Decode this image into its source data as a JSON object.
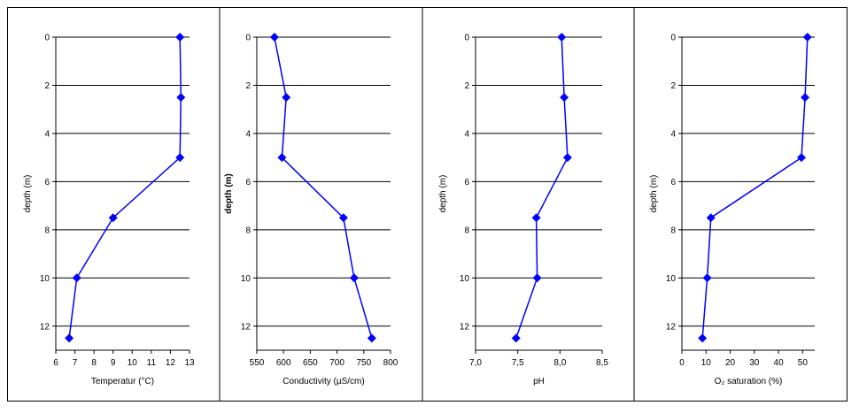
{
  "chart_data": [
    {
      "type": "line",
      "xlabel": "Temperatur (°C)",
      "ylabel": "depth (m)",
      "xlim": [
        6,
        13
      ],
      "xticks": [
        "6",
        "7",
        "8",
        "9",
        "10",
        "11",
        "12",
        "13"
      ],
      "ylim": [
        0,
        13
      ],
      "yticks": [
        "0",
        "2",
        "4",
        "6",
        "8",
        "10",
        "12"
      ],
      "y_inverted": true,
      "grid": "horizontal",
      "color": "#0000ff",
      "marker": "diamond",
      "series": [
        {
          "x": [
            12.5,
            12.55,
            12.5,
            9.0,
            7.1,
            6.7
          ],
          "y": [
            0,
            2.5,
            5,
            7.5,
            10,
            12.5
          ]
        }
      ]
    },
    {
      "type": "line",
      "xlabel": "Conductivity (µS/cm)",
      "ylabel": "depth (m)",
      "ylabel_bold": true,
      "xlim": [
        550,
        800
      ],
      "xticks": [
        "550",
        "600",
        "650",
        "700",
        "750",
        "800"
      ],
      "ylim": [
        0,
        13
      ],
      "yticks": [
        "0",
        "2",
        "4",
        "6",
        "8",
        "10",
        "12"
      ],
      "y_inverted": true,
      "grid": "horizontal",
      "color": "#0000ff",
      "marker": "diamond",
      "series": [
        {
          "x": [
            583,
            605,
            597,
            712,
            732,
            765
          ],
          "y": [
            0,
            2.5,
            5,
            7.5,
            10,
            12.5
          ]
        }
      ]
    },
    {
      "type": "line",
      "xlabel": "pH",
      "ylabel": "depth (m)",
      "xlim": [
        7.0,
        8.5
      ],
      "xticks": [
        "7,0",
        "7,5",
        "8,0",
        "8,5"
      ],
      "ylim": [
        0,
        13
      ],
      "yticks": [
        "0",
        "2",
        "4",
        "6",
        "8",
        "10",
        "12"
      ],
      "y_inverted": true,
      "grid": "horizontal",
      "color": "#0000ff",
      "marker": "diamond",
      "series": [
        {
          "x": [
            8.02,
            8.05,
            8.09,
            7.72,
            7.73,
            7.48
          ],
          "y": [
            0,
            2.5,
            5,
            7.5,
            10,
            12.5
          ]
        }
      ]
    },
    {
      "type": "line",
      "xlabel": "O₂ saturation (%)",
      "ylabel": "depth (m)",
      "xlim": [
        0,
        55
      ],
      "xticks": [
        "0",
        "10",
        "20",
        "30",
        "40",
        "50"
      ],
      "ylim": [
        0,
        13
      ],
      "yticks": [
        "0",
        "2",
        "4",
        "6",
        "8",
        "10",
        "12"
      ],
      "y_inverted": true,
      "grid": "horizontal",
      "color": "#0000ff",
      "marker": "diamond",
      "series": [
        {
          "x": [
            52,
            51,
            49.5,
            12,
            10.5,
            8.5
          ],
          "y": [
            0,
            2.5,
            5,
            7.5,
            10,
            12.5
          ]
        }
      ]
    }
  ]
}
